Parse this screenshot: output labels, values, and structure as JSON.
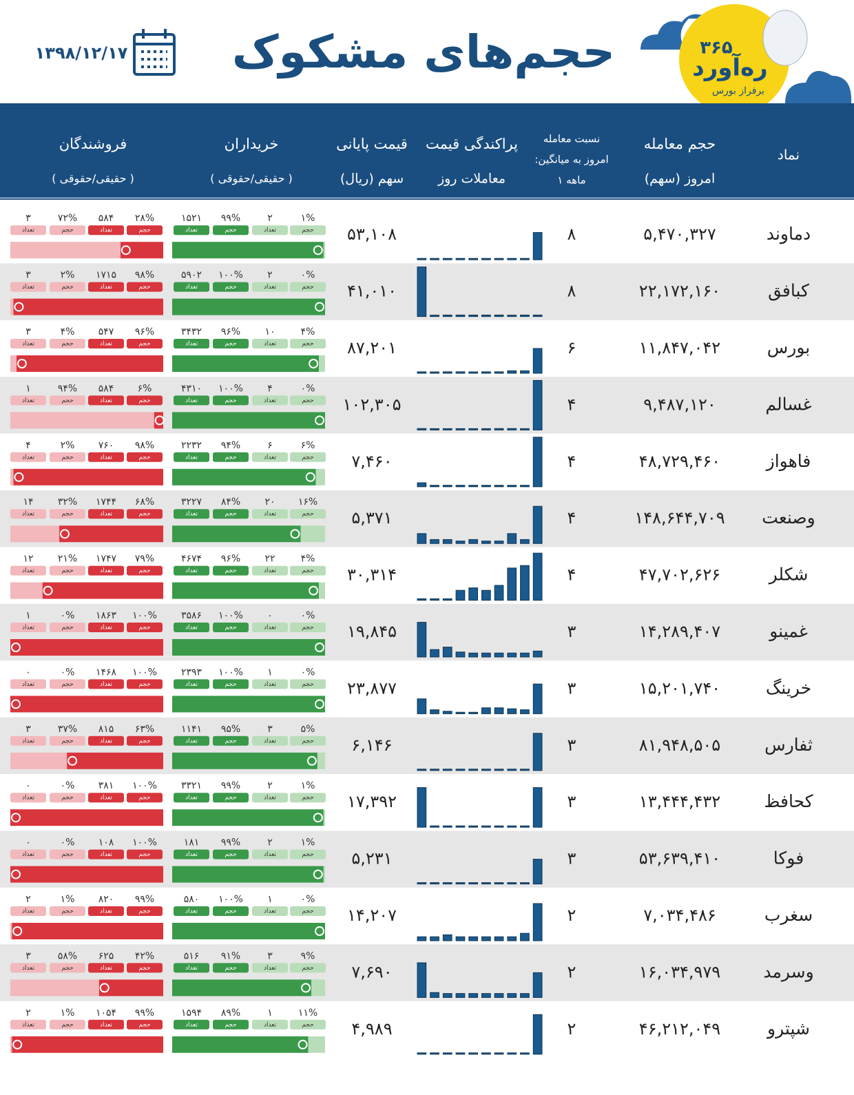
{
  "header": {
    "title": "حجم‌های مشکوک",
    "date": "۱۳۹۸/۱۲/۱۷",
    "logo": {
      "name": "ره‌آورد",
      "number": "۳۶۵",
      "tagline": "برفراز بورس"
    }
  },
  "table": {
    "columns": [
      {
        "lines": [
          "نماد"
        ]
      },
      {
        "lines": [
          "حجم معامله",
          "امروز (سهم)"
        ]
      },
      {
        "lines": [
          "نسبت معامله",
          ":امروز به میانگین",
          "۱ ماهه"
        ]
      },
      {
        "lines": [
          "پراکندگی قیمت",
          "معاملات روز"
        ]
      },
      {
        "lines": [
          "قیمت پایانی",
          "سهم (ریال)"
        ]
      },
      {
        "lines": [
          "خریداران",
          "( حقیقی/حقوقی )"
        ]
      },
      {
        "lines": [
          "فروشندگان",
          "( حقیقی/حقوقی )"
        ]
      }
    ],
    "chip_labels": {
      "vol": "حجم",
      "count": "تعداد"
    },
    "rows": [
      {
        "symbol": "دماوند",
        "volume": "۵,۴۷۰,۳۲۷",
        "ratio": "۸",
        "dist": [
          0,
          0,
          0,
          0,
          0,
          0,
          0,
          0,
          0,
          55
        ],
        "price": "۵۳,۱۰۸",
        "buyers": {
          "ind_count": "۱۵۲۱",
          "ind_vol": {
            "value": 99,
            "label": "۹۹%"
          },
          "legal_count": "۲",
          "legal_vol": {
            "value": 1,
            "label": "۱%"
          }
        },
        "sellers": {
          "ind_count": "۵۸۴",
          "ind_vol": {
            "value": 28,
            "label": "۲۸%"
          },
          "legal_count": "۳",
          "legal_vol": {
            "value": 72,
            "label": "۷۲%"
          }
        }
      },
      {
        "symbol": "کبافق",
        "volume": "۲۲,۱۷۲,۱۶۰",
        "ratio": "۸",
        "dist": [
          100,
          0,
          3,
          3,
          3,
          3,
          3,
          0,
          3,
          3
        ],
        "price": "۴۱,۰۱۰",
        "buyers": {
          "ind_count": "۵۹۰۲",
          "ind_vol": {
            "value": 100,
            "label": "۱۰۰%"
          },
          "legal_count": "۲",
          "legal_vol": {
            "value": 0,
            "label": "۰%"
          }
        },
        "sellers": {
          "ind_count": "۱۷۱۵",
          "ind_vol": {
            "value": 98,
            "label": "۹۸%"
          },
          "legal_count": "۳",
          "legal_vol": {
            "value": 2,
            "label": "۲%"
          }
        }
      },
      {
        "symbol": "بورس",
        "volume": "۱۱,۸۴۷,۰۴۲",
        "ratio": "۶",
        "dist": [
          3,
          0,
          3,
          3,
          0,
          3,
          3,
          5,
          5,
          50
        ],
        "price": "۸۷,۲۰۱",
        "buyers": {
          "ind_count": "۳۴۳۲",
          "ind_vol": {
            "value": 96,
            "label": "۹۶%"
          },
          "legal_count": "۱۰",
          "legal_vol": {
            "value": 4,
            "label": "۴%"
          }
        },
        "sellers": {
          "ind_count": "۵۴۷",
          "ind_vol": {
            "value": 96,
            "label": "۹۶%"
          },
          "legal_count": "۳",
          "legal_vol": {
            "value": 4,
            "label": "۴%"
          }
        }
      },
      {
        "symbol": "غسالم",
        "volume": "۹,۴۸۷,۱۲۰",
        "ratio": "۴",
        "dist": [
          3,
          0,
          0,
          0,
          0,
          0,
          3,
          3,
          0,
          100
        ],
        "price": "۱۰۲,۳۰۵",
        "buyers": {
          "ind_count": "۴۳۱۰",
          "ind_vol": {
            "value": 100,
            "label": "۱۰۰%"
          },
          "legal_count": "۴",
          "legal_vol": {
            "value": 0,
            "label": "۰%"
          }
        },
        "sellers": {
          "ind_count": "۵۸۴",
          "ind_vol": {
            "value": 6,
            "label": "۶%"
          },
          "legal_count": "۱",
          "legal_vol": {
            "value": 94,
            "label": "۹۴%"
          }
        }
      },
      {
        "symbol": "فاهواز",
        "volume": "۴۸,۷۲۹,۴۶۰",
        "ratio": "۴",
        "dist": [
          8,
          3,
          3,
          3,
          3,
          3,
          3,
          3,
          3,
          100
        ],
        "price": "۷,۴۶۰",
        "buyers": {
          "ind_count": "۲۲۳۲",
          "ind_vol": {
            "value": 94,
            "label": "۹۴%"
          },
          "legal_count": "۶",
          "legal_vol": {
            "value": 6,
            "label": "۶%"
          }
        },
        "sellers": {
          "ind_count": "۷۶۰",
          "ind_vol": {
            "value": 98,
            "label": "۹۸%"
          },
          "legal_count": "۴",
          "legal_vol": {
            "value": 2,
            "label": "۲%"
          }
        }
      },
      {
        "symbol": "وصنعت",
        "volume": "۱۴۸,۶۴۴,۷۰۹",
        "ratio": "۴",
        "dist": [
          20,
          8,
          8,
          5,
          8,
          5,
          5,
          20,
          8,
          75
        ],
        "price": "۵,۳۷۱",
        "buyers": {
          "ind_count": "۳۲۲۷",
          "ind_vol": {
            "value": 84,
            "label": "۸۴%"
          },
          "legal_count": "۲۰",
          "legal_vol": {
            "value": 16,
            "label": "۱۶%"
          }
        },
        "sellers": {
          "ind_count": "۱۷۴۴",
          "ind_vol": {
            "value": 68,
            "label": "۶۸%"
          },
          "legal_count": "۱۴",
          "legal_vol": {
            "value": 32,
            "label": "۳۲%"
          }
        }
      },
      {
        "symbol": "شکلر",
        "volume": "۴۷,۷۰۲,۶۲۶",
        "ratio": "۴",
        "dist": [
          3,
          3,
          3,
          20,
          25,
          20,
          30,
          65,
          70,
          95
        ],
        "price": "۳۰,۳۱۴",
        "buyers": {
          "ind_count": "۴۶۷۴",
          "ind_vol": {
            "value": 96,
            "label": "۹۶%"
          },
          "legal_count": "۲۲",
          "legal_vol": {
            "value": 4,
            "label": "۴%"
          }
        },
        "sellers": {
          "ind_count": "۱۷۴۷",
          "ind_vol": {
            "value": 79,
            "label": "۷۹%"
          },
          "legal_count": "۱۲",
          "legal_vol": {
            "value": 21,
            "label": "۲۱%"
          }
        }
      },
      {
        "symbol": "غمینو",
        "volume": "۱۴,۲۸۹,۴۰۷",
        "ratio": "۳",
        "dist": [
          70,
          15,
          20,
          10,
          8,
          8,
          8,
          8,
          8,
          12
        ],
        "price": "۱۹,۸۴۵",
        "buyers": {
          "ind_count": "۳۵۸۶",
          "ind_vol": {
            "value": 100,
            "label": "۱۰۰%"
          },
          "legal_count": "۰",
          "legal_vol": {
            "value": 0,
            "label": "۰%"
          }
        },
        "sellers": {
          "ind_count": "۱۸۶۳",
          "ind_vol": {
            "value": 100,
            "label": "۱۰۰%"
          },
          "legal_count": "۱",
          "legal_vol": {
            "value": 0,
            "label": "۰%"
          }
        }
      },
      {
        "symbol": "خرینگ",
        "volume": "۱۵,۲۰۱,۷۴۰",
        "ratio": "۳",
        "dist": [
          30,
          8,
          5,
          3,
          3,
          12,
          12,
          10,
          8,
          60
        ],
        "price": "۲۳,۸۷۷",
        "buyers": {
          "ind_count": "۲۳۹۳",
          "ind_vol": {
            "value": 100,
            "label": "۱۰۰%"
          },
          "legal_count": "۱",
          "legal_vol": {
            "value": 0,
            "label": "۰%"
          }
        },
        "sellers": {
          "ind_count": "۱۴۶۸",
          "ind_vol": {
            "value": 100,
            "label": "۱۰۰%"
          },
          "legal_count": "۰",
          "legal_vol": {
            "value": 0,
            "label": "۰%"
          }
        }
      },
      {
        "symbol": "ثفارس",
        "volume": "۸۱,۹۴۸,۵۰۵",
        "ratio": "۳",
        "dist": [
          0,
          0,
          0,
          0,
          0,
          0,
          0,
          0,
          0,
          75
        ],
        "price": "۶,۱۴۶",
        "buyers": {
          "ind_count": "۱۱۴۱",
          "ind_vol": {
            "value": 95,
            "label": "۹۵%"
          },
          "legal_count": "۳",
          "legal_vol": {
            "value": 5,
            "label": "۵%"
          }
        },
        "sellers": {
          "ind_count": "۸۱۵",
          "ind_vol": {
            "value": 63,
            "label": "۶۳%"
          },
          "legal_count": "۳",
          "legal_vol": {
            "value": 37,
            "label": "۳۷%"
          }
        }
      },
      {
        "symbol": "کحافظ",
        "volume": "۱۳,۴۴۴,۴۳۲",
        "ratio": "۳",
        "dist": [
          80,
          0,
          0,
          0,
          0,
          0,
          0,
          0,
          0,
          80
        ],
        "price": "۱۷,۳۹۲",
        "buyers": {
          "ind_count": "۳۳۲۱",
          "ind_vol": {
            "value": 99,
            "label": "۹۹%"
          },
          "legal_count": "۲",
          "legal_vol": {
            "value": 1,
            "label": "۱%"
          }
        },
        "sellers": {
          "ind_count": "۳۸۱",
          "ind_vol": {
            "value": 100,
            "label": "۱۰۰%"
          },
          "legal_count": "۰",
          "legal_vol": {
            "value": 0,
            "label": "۰%"
          }
        }
      },
      {
        "symbol": "فوکا",
        "volume": "۵۳,۶۳۹,۴۱۰",
        "ratio": "۳",
        "dist": [
          0,
          0,
          0,
          0,
          0,
          0,
          0,
          0,
          0,
          50
        ],
        "price": "۵,۲۳۱",
        "buyers": {
          "ind_count": "۱۸۱",
          "ind_vol": {
            "value": 99,
            "label": "۹۹%"
          },
          "legal_count": "۲",
          "legal_vol": {
            "value": 1,
            "label": "۱%"
          }
        },
        "sellers": {
          "ind_count": "۱۰۸",
          "ind_vol": {
            "value": 100,
            "label": "۱۰۰%"
          },
          "legal_count": "۰",
          "legal_vol": {
            "value": 0,
            "label": "۰%"
          }
        }
      },
      {
        "symbol": "سغرب",
        "volume": "۷,۰۳۴,۴۸۶",
        "ratio": "۲",
        "dist": [
          8,
          8,
          12,
          8,
          8,
          8,
          8,
          8,
          15,
          75
        ],
        "price": "۱۴,۲۰۷",
        "buyers": {
          "ind_count": "۵۸۰",
          "ind_vol": {
            "value": 100,
            "label": "۱۰۰%"
          },
          "legal_count": "۱",
          "legal_vol": {
            "value": 0,
            "label": "۰%"
          }
        },
        "sellers": {
          "ind_count": "۸۲۰",
          "ind_vol": {
            "value": 99,
            "label": "۹۹%"
          },
          "legal_count": "۲",
          "legal_vol": {
            "value": 1,
            "label": "۱%"
          }
        }
      },
      {
        "symbol": "وسرمد",
        "volume": "۱۶,۰۳۴,۹۷۹",
        "ratio": "۲",
        "dist": [
          70,
          10,
          8,
          8,
          8,
          8,
          8,
          8,
          8,
          50
        ],
        "price": "۷,۶۹۰",
        "buyers": {
          "ind_count": "۵۱۶",
          "ind_vol": {
            "value": 91,
            "label": "۹۱%"
          },
          "legal_count": "۳",
          "legal_vol": {
            "value": 9,
            "label": "۹%"
          }
        },
        "sellers": {
          "ind_count": "۶۲۵",
          "ind_vol": {
            "value": 42,
            "label": "۴۲%"
          },
          "legal_count": "۳",
          "legal_vol": {
            "value": 58,
            "label": "۵۸%"
          }
        }
      },
      {
        "symbol": "شپترو",
        "volume": "۴۶,۲۱۲,۰۴۹",
        "ratio": "۲",
        "dist": [
          0,
          0,
          0,
          0,
          0,
          0,
          0,
          0,
          0,
          80
        ],
        "price": "۴,۹۸۹",
        "buyers": {
          "ind_count": "۱۵۹۴",
          "ind_vol": {
            "value": 89,
            "label": "۸۹%"
          },
          "legal_count": "۱",
          "legal_vol": {
            "value": 11,
            "label": "۱۱%"
          }
        },
        "sellers": {
          "ind_count": "۱۰۵۴",
          "ind_vol": {
            "value": 99,
            "label": "۹۹%"
          },
          "legal_count": "۲",
          "legal_vol": {
            "value": 1,
            "label": "۱%"
          }
        }
      }
    ]
  }
}
